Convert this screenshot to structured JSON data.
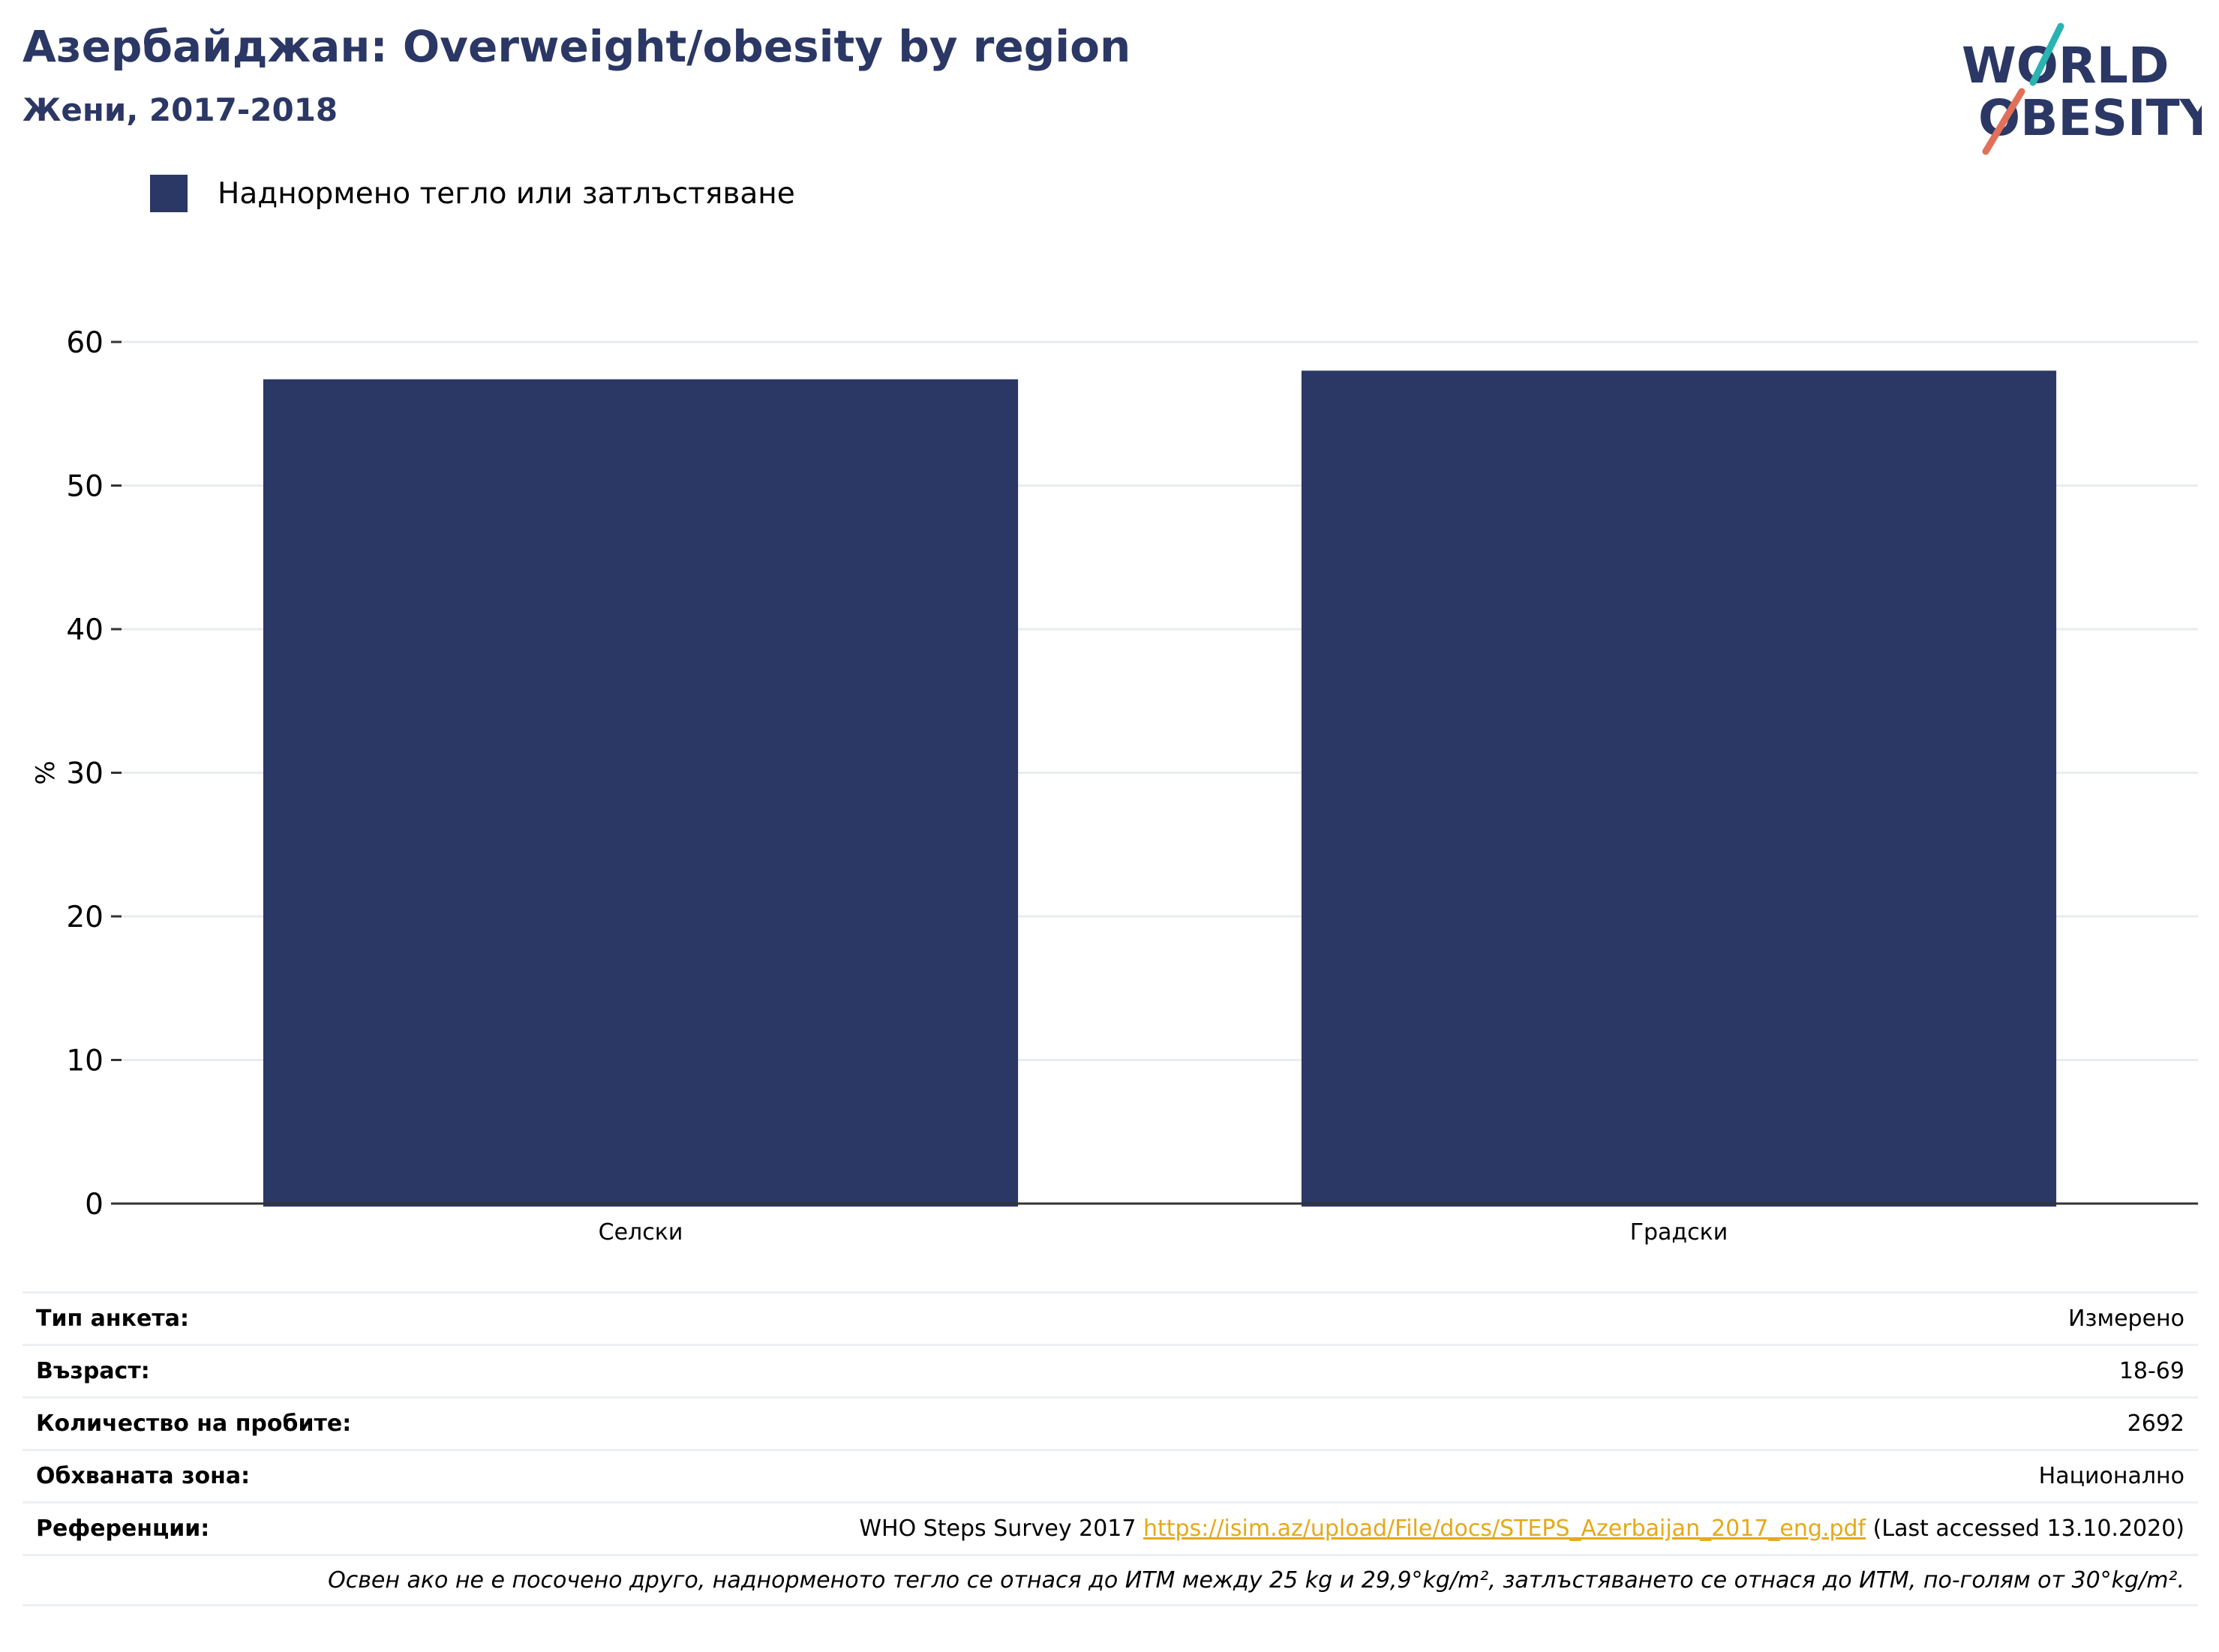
{
  "header": {
    "title": "Азербайджан: Overweight/obesity by region",
    "subtitle": "Жени, 2017-2018"
  },
  "logo": {
    "line1": "WORLD",
    "line2": "OBESITY",
    "colors": {
      "navy": "#2b3764",
      "teal": "#2ab3b1",
      "coral": "#e0705a"
    }
  },
  "chart_data": {
    "type": "bar",
    "categories": [
      "Селски",
      "Градски"
    ],
    "series": [
      {
        "name": "Наднормено тегло или затлъстяване",
        "values": [
          57.4,
          58.0
        ],
        "color": "#2b3764"
      }
    ],
    "ylabel": "%",
    "ylim": [
      0,
      60
    ],
    "yticks": [
      0,
      10,
      20,
      30,
      40,
      50,
      60
    ],
    "grid": true,
    "legend": "top-left"
  },
  "info": {
    "survey_type": {
      "label": "Тип анкета:",
      "value": "Измерено"
    },
    "age": {
      "label": "Възраст:",
      "value": "18-69"
    },
    "sample_size": {
      "label": "Количество на пробите:",
      "value": "2692"
    },
    "area": {
      "label": "Обхваната зона:",
      "value": "Национално"
    },
    "references": {
      "label": "Референции:",
      "prefix": "WHO Steps Survey 2017",
      "link": "https://isim.az/upload/File/docs/STEPS_Azerbaijan_2017_eng.pdf",
      "suffix": "(Last accessed 13.10.2020)"
    },
    "note": "Освен ако не е посочено друго, наднорменото тегло се отнася до ИТМ между 25 kg и 29,9°kg/m², затлъстяването се отнася до ИТМ, по-голям от 30°kg/m²."
  }
}
